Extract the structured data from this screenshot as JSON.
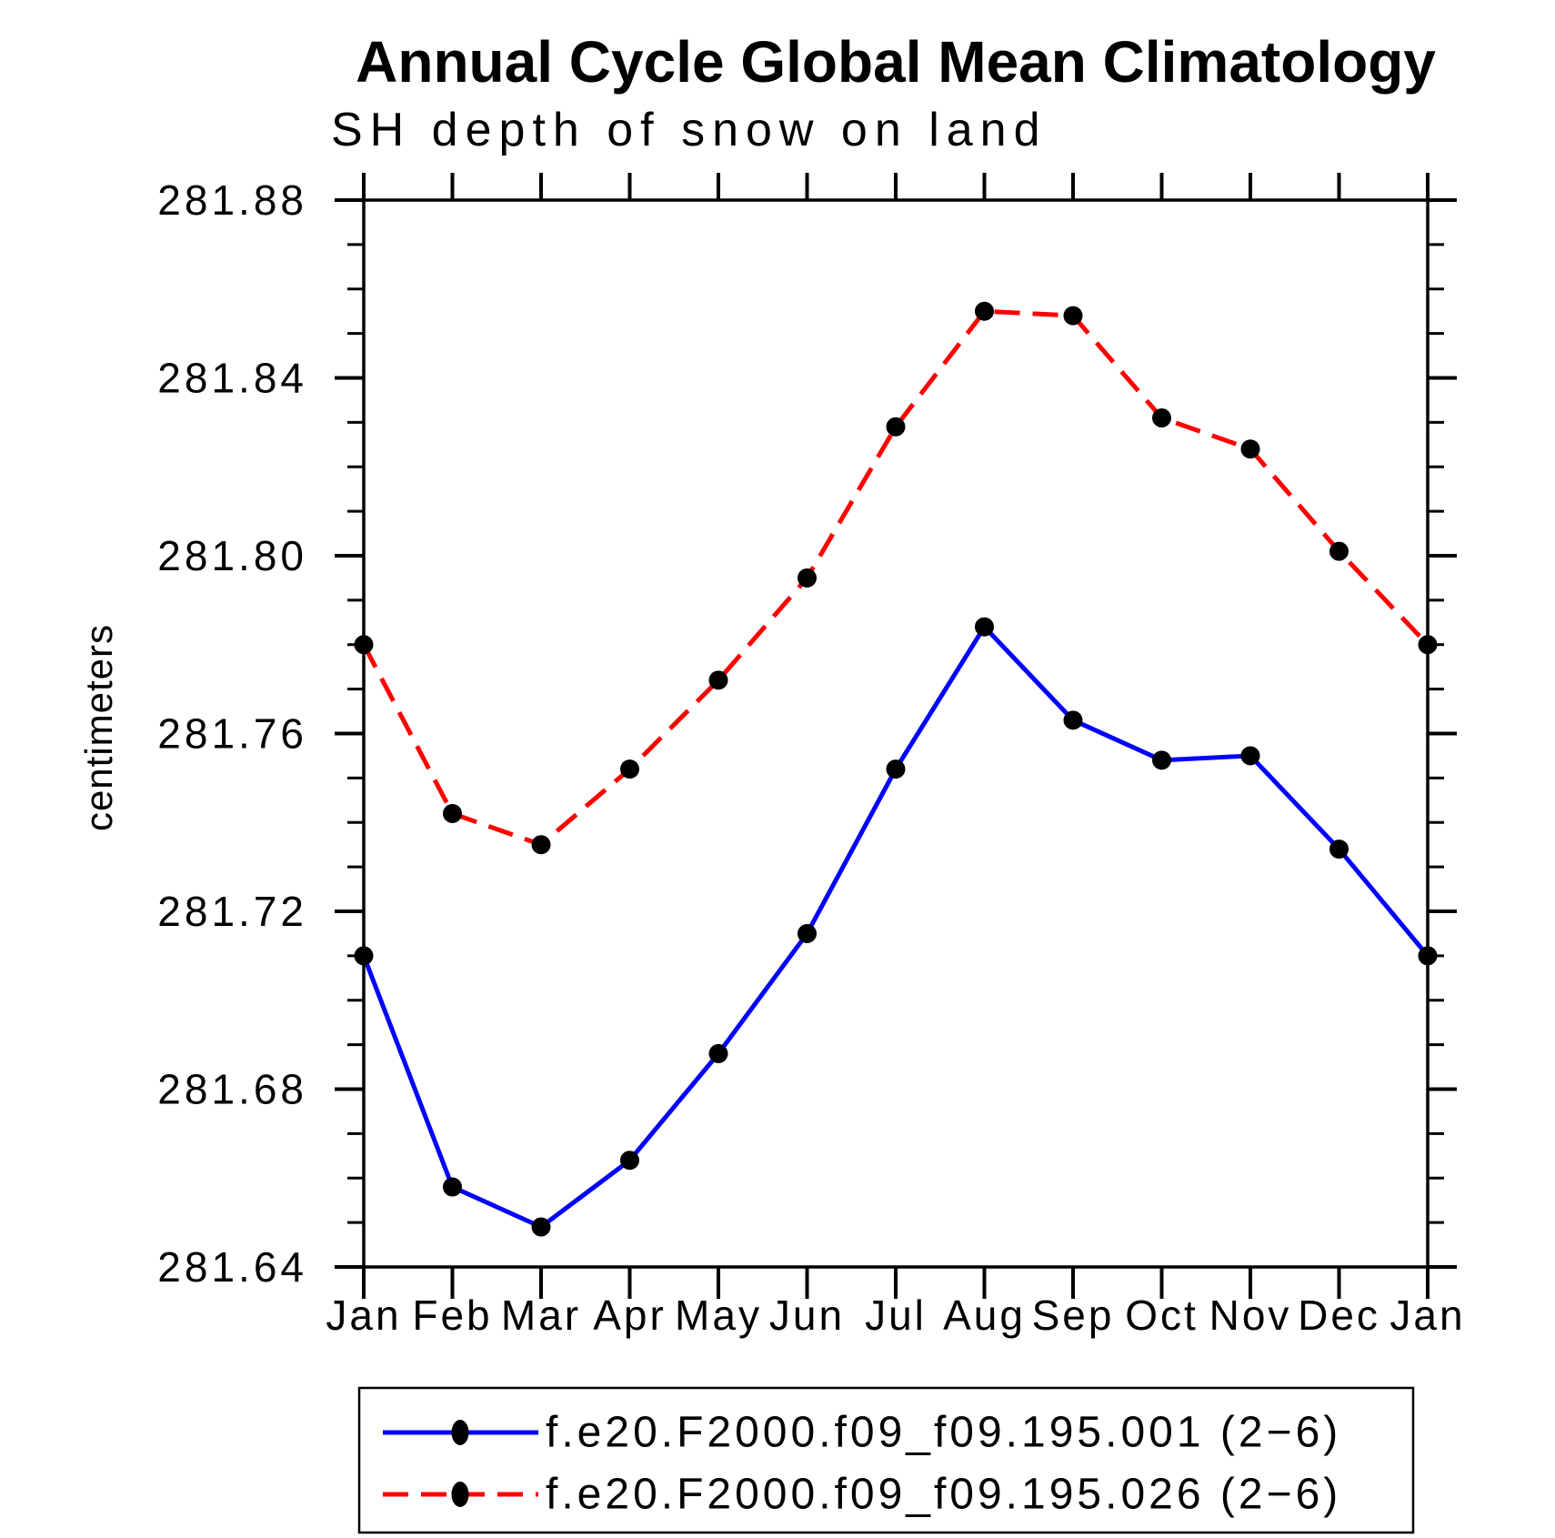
{
  "title": "Annual Cycle Global Mean Climatology",
  "subtitle": "SH depth of snow on land",
  "chart_data": {
    "type": "line",
    "title": "Annual Cycle Global Mean Climatology",
    "subtitle": "SH depth of snow on land",
    "xlabel": "",
    "ylabel": "centimeters",
    "x_categories": [
      "Jan",
      "Feb",
      "Mar",
      "Apr",
      "May",
      "Jun",
      "Jul",
      "Aug",
      "Sep",
      "Oct",
      "Nov",
      "Dec",
      "Jan"
    ],
    "ylim": [
      281.64,
      281.88
    ],
    "y_major_tick_labels": [
      "281.64",
      "281.68",
      "281.72",
      "281.76",
      "281.80",
      "281.84",
      "281.88"
    ],
    "y_major_step": 0.04,
    "y_minor_step": 0.01,
    "grid": false,
    "legend_position": "bottom",
    "frame": "box-with-mirrored-ticks",
    "series": [
      {
        "name": "f.e20.F2000.f09_f09.195.001 (2−6)",
        "color": "#0000ff",
        "line_style": "solid",
        "marker": "filled-circle",
        "marker_color": "#000000",
        "values": [
          281.71,
          281.658,
          281.649,
          281.664,
          281.688,
          281.715,
          281.752,
          281.784,
          281.763,
          281.754,
          281.755,
          281.734,
          281.71
        ]
      },
      {
        "name": "f.e20.F2000.f09_f09.195.026 (2−6)",
        "color": "#ff0000",
        "line_style": "dashed",
        "marker": "filled-circle",
        "marker_color": "#000000",
        "values": [
          281.78,
          281.742,
          281.735,
          281.752,
          281.772,
          281.795,
          281.829,
          281.855,
          281.854,
          281.831,
          281.824,
          281.801,
          281.78
        ]
      }
    ]
  },
  "colors": {
    "background": "#ffffff",
    "axis": "#000000",
    "series_1": "#0000ff",
    "series_2": "#ff0000",
    "marker": "#000000"
  }
}
